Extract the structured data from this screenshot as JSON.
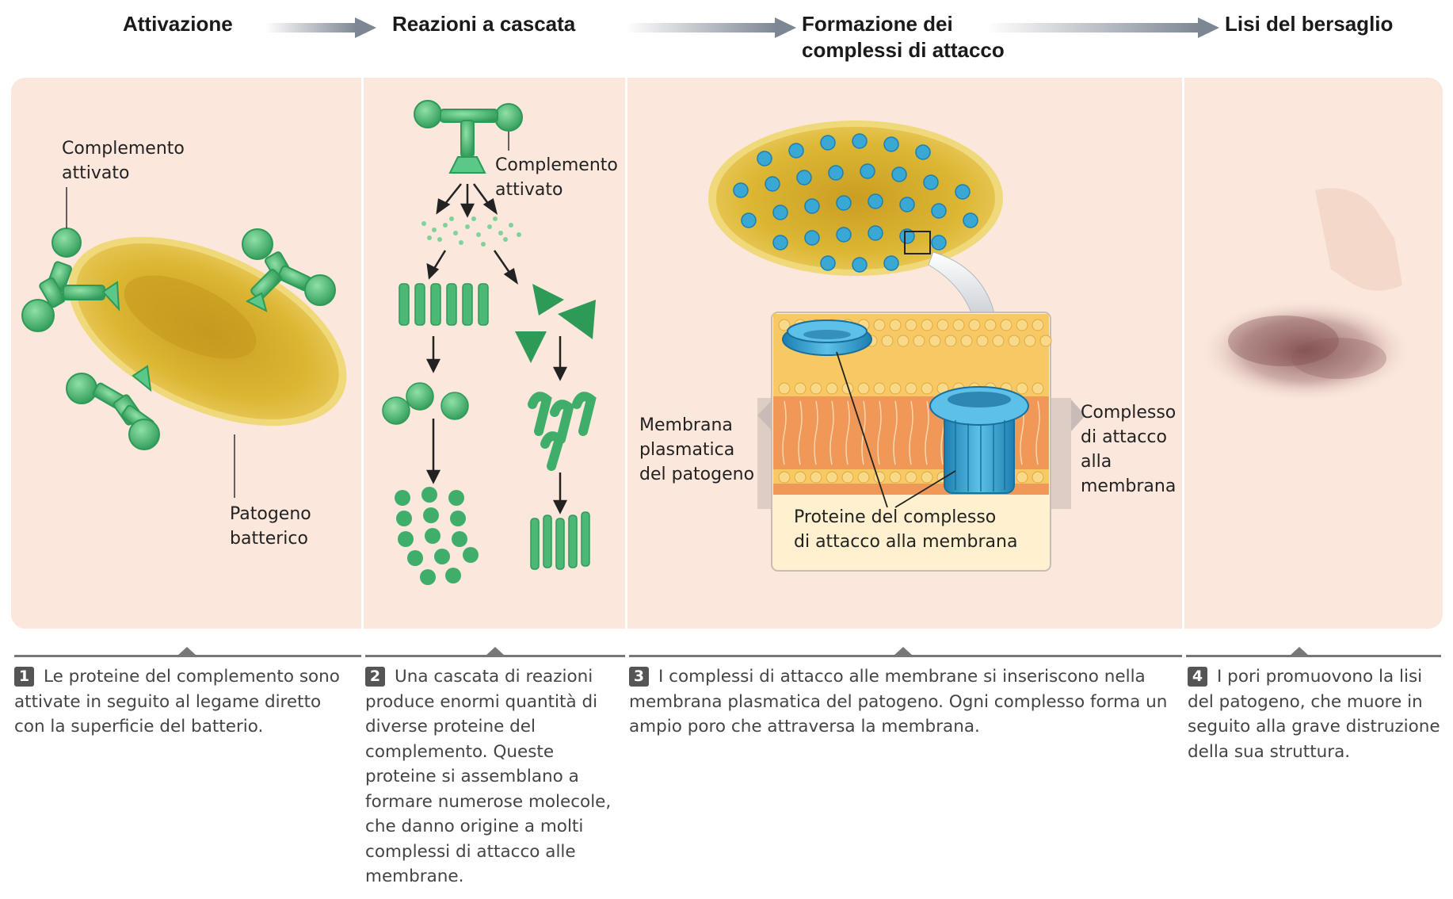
{
  "stages": [
    {
      "title": "Attivazione"
    },
    {
      "title": "Reazioni a cascata"
    },
    {
      "title": "Formazione dei complessi di attacco"
    },
    {
      "title": "Lisi del bersaglio"
    }
  ],
  "labels": {
    "complemento_attivato_1": "Complemento\nattivato",
    "patogeno_batterico": "Patogeno\nbatterico",
    "complemento_attivato_2": "Complemento\nattivato",
    "membrana_plasmatica": "Membrana\nplasmatica\ndel patogeno",
    "complesso_attacco": "Complesso\ndi attacco\nalla\nmembrana",
    "proteine_complesso": "Proteine del complesso\ndi attacco alla membrana"
  },
  "captions": [
    {
      "num": "1",
      "text": "Le proteine del complemento sono attivate in seguito al legame diretto con la superficie del batterio."
    },
    {
      "num": "2",
      "text": "Una cascata di reazioni produce enormi quantità di diverse proteine del complemento. Queste proteine si assemblano a formare numerose molecole, che danno origine a molti complessi di attacco alle membrane."
    },
    {
      "num": "3",
      "text": "I complessi di attacco alle membrane si inseriscono nella membrana plasmatica del patogeno. Ogni complesso forma un ampio poro che attraversa la membrana."
    },
    {
      "num": "4",
      "text": "I pori promuovono la lisi del patogeno, che muore in seguito alla grave distruzione della sua struttura."
    }
  ],
  "colors": {
    "panel_bg": "#fbe7dc",
    "protein_green": "#3fae6a",
    "bacterium_yellow": "#d9b22e",
    "mac_blue": "#2a98c8",
    "arrow_grey": "#8a94a0"
  }
}
